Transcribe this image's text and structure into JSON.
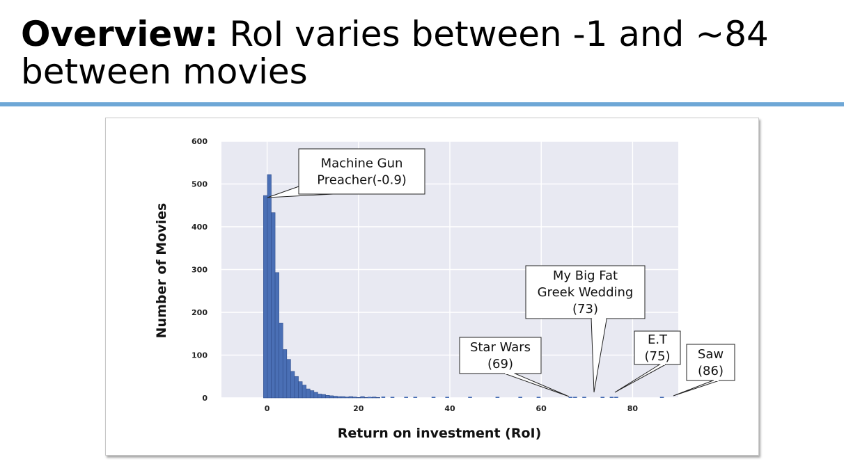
{
  "slide": {
    "title_bold": "Overview:",
    "title_rest": " RoI varies between -1 and ~84 between movies"
  },
  "colors": {
    "accent_rule": "#6ea7d6",
    "bar_fill": "#4a6fb5",
    "plot_background": "#e8e9f2"
  },
  "chart_data": {
    "type": "bar",
    "title": "",
    "xlabel": "Return on investment (RoI)",
    "ylabel": "Number of Movies",
    "xlim": [
      -10,
      90
    ],
    "ylim": [
      0,
      600
    ],
    "xticks": [
      0,
      20,
      40,
      60,
      80
    ],
    "yticks": [
      0,
      100,
      200,
      300,
      400,
      500,
      600
    ],
    "grid": true,
    "bin_width": 0.85,
    "bins_start": -0.8,
    "values": [
      473,
      522,
      433,
      293,
      175,
      113,
      90,
      62,
      50,
      38,
      30,
      21,
      17,
      13,
      9,
      8,
      6,
      5,
      4,
      3,
      3,
      2,
      3,
      2,
      1,
      3,
      1,
      1,
      2,
      1
    ],
    "sparse_bars": [
      {
        "x": 22,
        "y": 2
      },
      {
        "x": 25,
        "y": 3
      },
      {
        "x": 27,
        "y": 2
      },
      {
        "x": 30,
        "y": 1
      },
      {
        "x": 32,
        "y": 2
      },
      {
        "x": 36,
        "y": 2
      },
      {
        "x": 39,
        "y": 1
      },
      {
        "x": 44,
        "y": 1
      },
      {
        "x": 50,
        "y": 1
      },
      {
        "x": 55,
        "y": 1
      },
      {
        "x": 59,
        "y": 1
      },
      {
        "x": 66,
        "y": 1
      },
      {
        "x": 67,
        "y": 1
      },
      {
        "x": 69,
        "y": 1
      },
      {
        "x": 73,
        "y": 1
      },
      {
        "x": 75,
        "y": 2
      },
      {
        "x": 76,
        "y": 1
      },
      {
        "x": 86,
        "y": 1
      }
    ],
    "annotations": [
      {
        "id": "machine-gun-preacher",
        "lines": [
          "Machine Gun",
          "Preacher(-0.9)"
        ],
        "x": -0.9,
        "y": 470
      },
      {
        "id": "star-wars",
        "lines": [
          "Star Wars",
          "(69)"
        ],
        "x": 69,
        "y": 0
      },
      {
        "id": "big-fat-greek-wedding",
        "lines": [
          "My Big Fat",
          "Greek Wedding",
          "(73)"
        ],
        "x": 73,
        "y": 0
      },
      {
        "id": "et",
        "lines": [
          "E.T",
          "(75)"
        ],
        "x": 75,
        "y": 0
      },
      {
        "id": "saw",
        "lines": [
          "Saw",
          "(86)"
        ],
        "x": 86,
        "y": 0
      }
    ]
  }
}
